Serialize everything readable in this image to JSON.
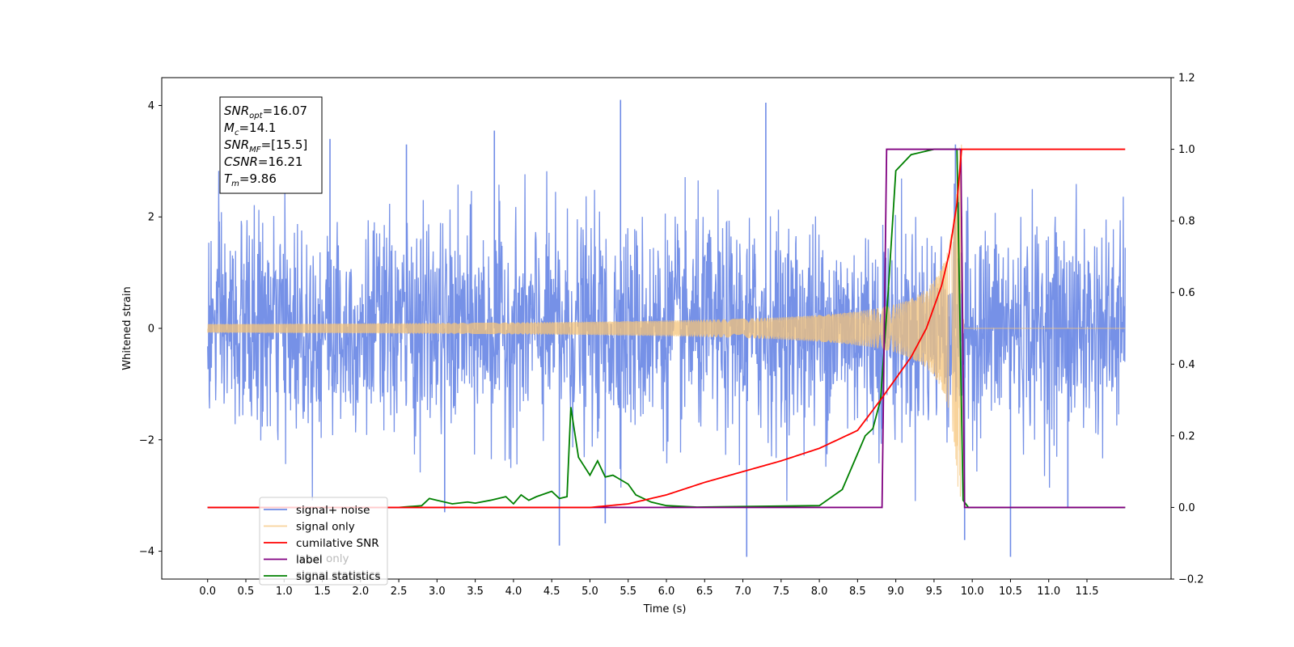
{
  "chart_data": {
    "type": "line",
    "xlabel": "Time (s)",
    "ylabel": "Whitened strain",
    "xlim": [
      -0.6,
      12.6
    ],
    "ylim": [
      -4.5,
      4.5
    ],
    "y2lim": [
      -0.2,
      1.2
    ],
    "x_ticks": [
      0.0,
      0.5,
      1.0,
      1.5,
      2.0,
      2.5,
      3.0,
      3.5,
      4.0,
      4.5,
      5.0,
      5.5,
      6.0,
      6.5,
      7.0,
      7.5,
      8.0,
      8.5,
      9.0,
      9.5,
      10.0,
      10.5,
      11.0,
      11.5
    ],
    "x_tick_labels": [
      "0.0",
      "0.5",
      "1.0",
      "1.5",
      "2.0",
      "2.5",
      "3.0",
      "3.5",
      "4.0",
      "4.5",
      "5.0",
      "5.5",
      "6.0",
      "6.5",
      "7.0",
      "7.5",
      "8.0",
      "8.5",
      "9.0",
      "9.5",
      "10.0",
      "10.5",
      "11.0",
      "11.5"
    ],
    "y_ticks": [
      -4,
      -2,
      0,
      2,
      4
    ],
    "y_tick_labels": [
      "−4",
      "−2",
      "0",
      "2",
      "4"
    ],
    "y2_ticks": [
      -0.2,
      0.0,
      0.2,
      0.4,
      0.6,
      0.8,
      1.0,
      1.2
    ],
    "y2_tick_labels": [
      "−0.2",
      "0.0",
      "0.2",
      "0.4",
      "0.6",
      "0.8",
      "1.0",
      "1.2"
    ],
    "legend_position": "lower-left",
    "series": [
      {
        "name": "signal+ noise",
        "color": "#6f8be6",
        "axis": "left",
        "description_range": [
          0.0,
          12.0
        ]
      },
      {
        "name": "signal only",
        "color": "#f5c47a",
        "axis": "left",
        "merger_time": 9.86
      },
      {
        "name": "cumilative SNR",
        "color": "#ff0000",
        "axis": "right",
        "x": [
          0.0,
          5.0,
          5.5,
          6.0,
          6.5,
          7.0,
          7.5,
          8.0,
          8.5,
          8.8,
          9.0,
          9.2,
          9.4,
          9.6,
          9.7,
          9.8,
          9.86,
          11.5,
          12.0
        ],
        "y": [
          0.0,
          0.0,
          0.01,
          0.035,
          0.07,
          0.1,
          0.13,
          0.165,
          0.215,
          0.3,
          0.36,
          0.42,
          0.5,
          0.62,
          0.71,
          0.85,
          1.0,
          1.0,
          1.0
        ]
      },
      {
        "name": "label",
        "color": "#800080",
        "axis": "right",
        "x": [
          0.0,
          8.82,
          8.88,
          9.85,
          9.9,
          12.0
        ],
        "y": [
          0.0,
          0.0,
          1.0,
          1.0,
          0.0,
          0.0
        ]
      },
      {
        "name": "signal statistics",
        "color": "#008000",
        "axis": "right",
        "x": [
          0.0,
          2.5,
          2.8,
          2.9,
          3.0,
          3.2,
          3.4,
          3.5,
          3.7,
          3.9,
          4.0,
          4.1,
          4.2,
          4.3,
          4.5,
          4.6,
          4.7,
          4.75,
          4.85,
          5.0,
          5.1,
          5.2,
          5.3,
          5.5,
          5.6,
          5.8,
          6.0,
          6.4,
          8.0,
          8.3,
          8.5,
          8.6,
          8.7,
          8.8,
          8.85,
          8.9,
          9.0,
          9.2,
          9.5,
          9.8,
          9.88,
          9.95,
          12.0
        ],
        "y": [
          0.0,
          0.0,
          0.005,
          0.025,
          0.02,
          0.01,
          0.015,
          0.012,
          0.02,
          0.03,
          0.01,
          0.035,
          0.02,
          0.03,
          0.045,
          0.025,
          0.03,
          0.28,
          0.14,
          0.09,
          0.13,
          0.085,
          0.09,
          0.065,
          0.035,
          0.015,
          0.005,
          0.001,
          0.005,
          0.05,
          0.15,
          0.2,
          0.22,
          0.3,
          0.45,
          0.6,
          0.94,
          0.985,
          1.0,
          1.0,
          0.02,
          0.0,
          0.0
        ]
      }
    ],
    "annotation": {
      "lines": [
        {
          "base": "SNR",
          "sub": "opt",
          "value": "=16.07"
        },
        {
          "base": "M",
          "sub": "c",
          "value": "=14.1"
        },
        {
          "base": "SNR",
          "sub": "MF",
          "value": "=[15.5]"
        },
        {
          "base": "CSNR",
          "sub": "",
          "value": "=16.21"
        },
        {
          "base": "T",
          "sub": "m",
          "value": "=9.86"
        }
      ]
    },
    "legend": {
      "entries": [
        "signal+ noise",
        "signal only",
        "cumilative SNR",
        "label",
        "signal statistics"
      ],
      "hidden_entries": [
        "label only",
        "signal statistics"
      ]
    }
  }
}
